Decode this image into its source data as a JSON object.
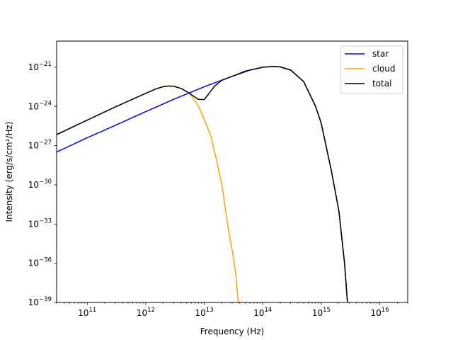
{
  "chart_data": {
    "type": "line",
    "title": "",
    "xlabel": "Frequency (Hz)",
    "ylabel": "Intensity (erg/s/cm²/Hz)",
    "x_scale": "log",
    "y_scale": "log",
    "xlim": [
      30000000000.0,
      3e+16
    ],
    "ylim": [
      1e-39,
      1e-19
    ],
    "xticks": [
      {
        "value": 100000000000.0,
        "base": "10",
        "exp": "11"
      },
      {
        "value": 1000000000000.0,
        "base": "10",
        "exp": "12"
      },
      {
        "value": 10000000000000.0,
        "base": "10",
        "exp": "13"
      },
      {
        "value": 100000000000000.0,
        "base": "10",
        "exp": "14"
      },
      {
        "value": 1000000000000000.0,
        "base": "10",
        "exp": "15"
      },
      {
        "value": 1e+16,
        "base": "10",
        "exp": "16"
      }
    ],
    "yticks": [
      {
        "value": 1e-21,
        "base": "10",
        "exp": "−21"
      },
      {
        "value": 1e-24,
        "base": "10",
        "exp": "−24"
      },
      {
        "value": 1e-27,
        "base": "10",
        "exp": "−27"
      },
      {
        "value": 1e-30,
        "base": "10",
        "exp": "−30"
      },
      {
        "value": 1e-33,
        "base": "10",
        "exp": "−33"
      },
      {
        "value": 1e-36,
        "base": "10",
        "exp": "−36"
      },
      {
        "value": 1e-39,
        "base": "10",
        "exp": "−39"
      }
    ],
    "legend_position": "top-right",
    "grid": false,
    "series": [
      {
        "name": "star",
        "color": "#0000ff",
        "x": [
          30000000000.0,
          100000000000.0,
          300000000000.0,
          1000000000000.0,
          3000000000000.0,
          10000000000000.0,
          30000000000000.0,
          60000000000000.0,
          100000000000000.0,
          150000000000000.0,
          200000000000000.0,
          300000000000000.0,
          500000000000000.0,
          800000000000000.0,
          1000000000000000.0,
          1500000000000000.0,
          2000000000000000.0,
          2500000000000000.0,
          2800000000000000.0
        ],
        "y": [
          3.2e-28,
          4e-27,
          3.5e-26,
          4e-25,
          3.5e-24,
          3.2e-23,
          2e-22,
          6e-22,
          1e-21,
          1.15e-21,
          1.05e-21,
          6e-22,
          8e-23,
          1e-24,
          5e-26,
          1e-29,
          1e-32,
          1e-36,
          1e-39
        ]
      },
      {
        "name": "cloud",
        "color": "#ffa500",
        "x": [
          30000000000.0,
          100000000000.0,
          300000000000.0,
          1000000000000.0,
          1500000000000.0,
          2000000000000.0,
          2500000000000.0,
          3000000000000.0,
          4000000000000.0,
          5000000000000.0,
          6000000000000.0,
          8000000000000.0,
          10000000000000.0,
          13000000000000.0,
          16000000000000.0,
          20000000000000.0,
          25000000000000.0,
          30000000000000.0,
          35000000000000.0,
          38000000000000.0
        ],
        "y": [
          7e-27,
          9e-26,
          9e-25,
          1e-23,
          2.2e-23,
          3.3e-23,
          3.7e-23,
          3.5e-23,
          2.4e-23,
          1.3e-23,
          7e-24,
          1e-24,
          1e-25,
          5e-27,
          1e-28,
          1e-30,
          1e-33,
          1e-35,
          1e-37,
          1e-39
        ]
      },
      {
        "name": "total",
        "color": "#000000",
        "x": [
          30000000000.0,
          100000000000.0,
          300000000000.0,
          1000000000000.0,
          1500000000000.0,
          2000000000000.0,
          2500000000000.0,
          3000000000000.0,
          4000000000000.0,
          5000000000000.0,
          6000000000000.0,
          8000000000000.0,
          10000000000000.0,
          15000000000000.0,
          20000000000000.0,
          30000000000000.0,
          50000000000000.0,
          100000000000000.0,
          150000000000000.0,
          200000000000000.0,
          300000000000000.0,
          500000000000000.0,
          800000000000000.0,
          1000000000000000.0,
          1500000000000000.0,
          2000000000000000.0,
          2500000000000000.0,
          2800000000000000.0
        ],
        "y": [
          7e-27,
          9e-26,
          9e-25,
          1e-23,
          2.2e-23,
          3.3e-23,
          3.7e-23,
          3.5e-23,
          2.4e-23,
          1.4e-23,
          8e-24,
          3.5e-24,
          3.3e-24,
          3.5e-23,
          1e-22,
          2e-22,
          5e-22,
          1e-21,
          1.15e-21,
          1.05e-21,
          6e-22,
          8e-23,
          1e-24,
          5e-26,
          1e-29,
          1e-32,
          1e-36,
          1e-39
        ]
      }
    ]
  }
}
